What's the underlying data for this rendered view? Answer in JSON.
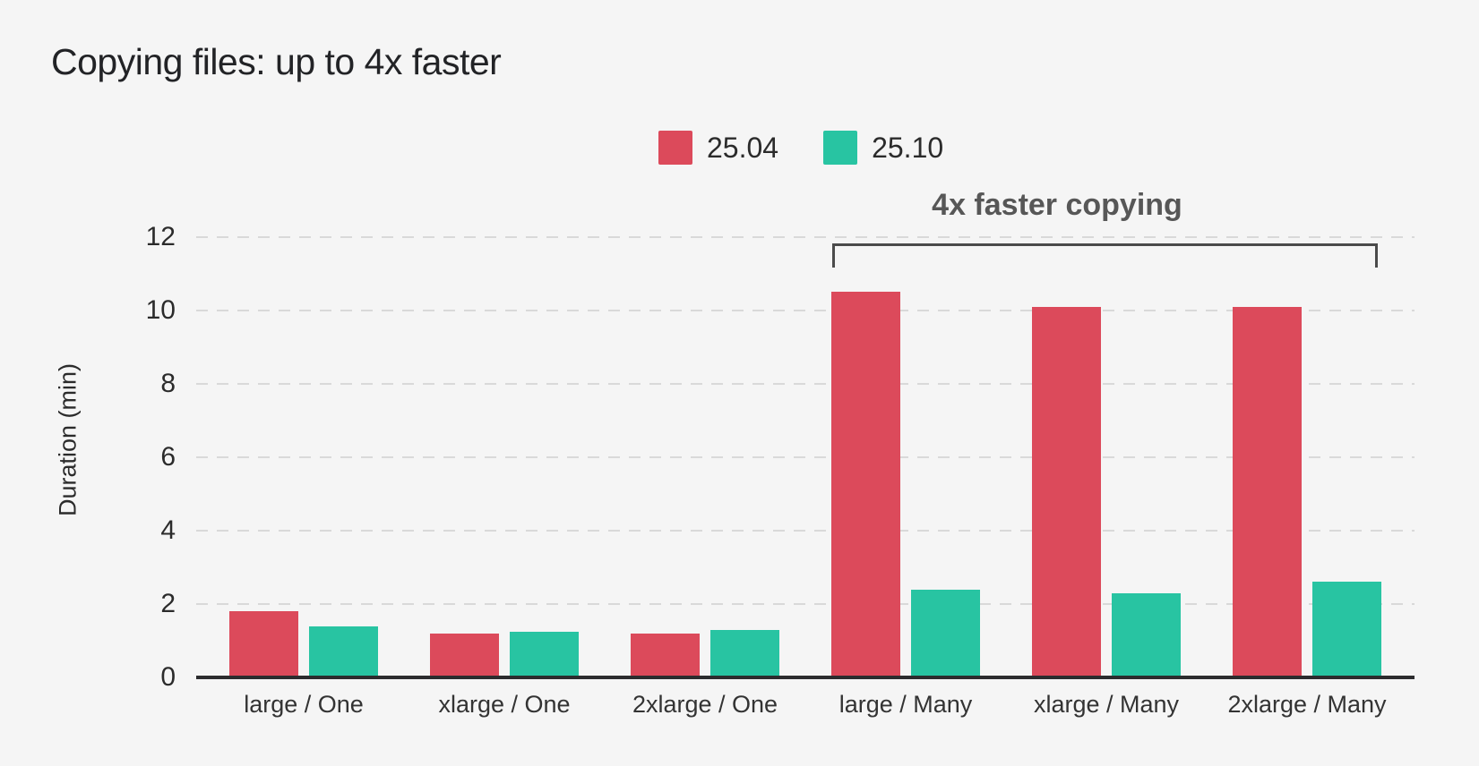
{
  "title": "Copying files: up to 4x faster",
  "legend": [
    {
      "label": "25.04",
      "color": "#dc4a5b"
    },
    {
      "label": "25.10",
      "color": "#28c4a2"
    }
  ],
  "annotation": {
    "text": "4x faster copying"
  },
  "ylabel": "Duration (min)",
  "chart_data": {
    "type": "bar",
    "title": "Copying files: up to 4x faster",
    "categories": [
      "large / One",
      "xlarge / One",
      "2xlarge / One",
      "large / Many",
      "xlarge / Many",
      "2xlarge / Many"
    ],
    "series": [
      {
        "name": "25.04",
        "color": "#dc4a5b",
        "values": [
          1.8,
          1.2,
          1.2,
          10.5,
          10.1,
          10.1
        ]
      },
      {
        "name": "25.10",
        "color": "#28c4a2",
        "values": [
          1.4,
          1.25,
          1.3,
          2.4,
          2.3,
          2.6
        ]
      }
    ],
    "xlabel": "",
    "ylabel": "Duration (min)",
    "yticks": [
      0,
      2,
      4,
      6,
      8,
      10,
      12
    ],
    "ylim": [
      0,
      12
    ],
    "grid": "horizontal-dashed",
    "legend_position": "top-center",
    "annotation": {
      "text": "4x faster copying",
      "bracket_over_categories": [
        "large / Many",
        "xlarge / Many",
        "2xlarge / Many"
      ]
    }
  },
  "colors": {
    "background": "#f5f5f5",
    "series_red": "#dc4a5b",
    "series_teal": "#28c4a2",
    "text": "#2b2b2b",
    "grid": "#d9d9d9",
    "axis": "#2c2c2e",
    "annotation_text": "#575757"
  }
}
